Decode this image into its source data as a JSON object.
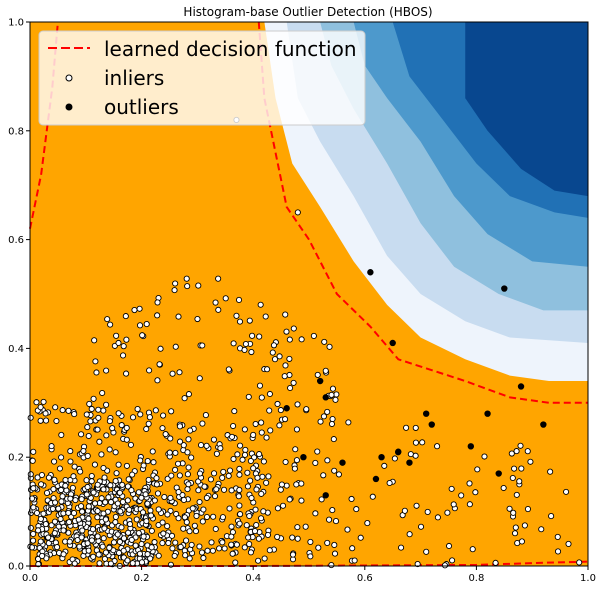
{
  "chart_data": {
    "type": "scatter",
    "title": "Histogram-base Outlier Detection (HBOS)",
    "xlabel": "",
    "ylabel": "",
    "xlim": [
      0,
      1
    ],
    "ylim": [
      0,
      1
    ],
    "x_ticks": [
      "0.0",
      "0.2",
      "0.4",
      "0.6",
      "0.8",
      "1.0"
    ],
    "y_ticks": [
      "0.0",
      "0.2",
      "0.4",
      "0.6",
      "0.8",
      "1.0"
    ],
    "legend_position": "top-left",
    "legend": [
      {
        "label": "learned decision function",
        "style": "dashed-line",
        "color": "#ff0000"
      },
      {
        "label": "inliers",
        "style": "hollow-marker",
        "color": "#ffffff"
      },
      {
        "label": "outliers",
        "style": "filled-marker",
        "color": "#000000"
      }
    ],
    "colors": {
      "inlier_region": "#ffa500",
      "decision_boundary": "#ff0000",
      "contour_levels": [
        "#eef4fc",
        "#c8dcf0",
        "#8fc0de",
        "#4d99cc",
        "#2171b5",
        "#08478f"
      ]
    },
    "decision_boundary_upper": [
      [
        0.0,
        0.62
      ],
      [
        0.02,
        0.72
      ],
      [
        0.04,
        0.88
      ],
      [
        0.05,
        1.0
      ]
    ],
    "decision_boundary_main": [
      [
        0.41,
        1.0
      ],
      [
        0.42,
        0.86
      ],
      [
        0.44,
        0.76
      ],
      [
        0.46,
        0.66
      ],
      [
        0.5,
        0.6
      ],
      [
        0.55,
        0.5
      ],
      [
        0.61,
        0.44
      ],
      [
        0.66,
        0.38
      ],
      [
        0.72,
        0.36
      ],
      [
        0.78,
        0.34
      ],
      [
        0.86,
        0.31
      ],
      [
        0.93,
        0.3
      ],
      [
        1.0,
        0.3
      ]
    ],
    "decision_boundary_bottom": [
      [
        0.0,
        0.0
      ],
      [
        0.4,
        0.0
      ],
      [
        0.8,
        0.002
      ],
      [
        0.92,
        0.006
      ],
      [
        1.0,
        0.008
      ]
    ],
    "contour_bands": [
      [
        [
          0.42,
          1.0
        ],
        [
          0.44,
          0.86
        ],
        [
          0.47,
          0.74
        ],
        [
          0.52,
          0.66
        ],
        [
          0.58,
          0.56
        ],
        [
          0.64,
          0.48
        ],
        [
          0.7,
          0.42
        ],
        [
          0.78,
          0.38
        ],
        [
          0.86,
          0.35
        ],
        [
          0.93,
          0.34
        ],
        [
          1.0,
          0.34
        ]
      ],
      [
        [
          0.46,
          1.0
        ],
        [
          0.48,
          0.86
        ],
        [
          0.52,
          0.78
        ],
        [
          0.58,
          0.68
        ],
        [
          0.64,
          0.57
        ],
        [
          0.7,
          0.5
        ],
        [
          0.78,
          0.45
        ],
        [
          0.86,
          0.42
        ],
        [
          1.0,
          0.41
        ]
      ],
      [
        [
          0.52,
          1.0
        ],
        [
          0.54,
          0.92
        ],
        [
          0.58,
          0.84
        ],
        [
          0.64,
          0.74
        ],
        [
          0.7,
          0.63
        ],
        [
          0.76,
          0.55
        ],
        [
          0.84,
          0.5
        ],
        [
          0.92,
          0.47
        ],
        [
          1.0,
          0.47
        ]
      ],
      [
        [
          0.58,
          1.0
        ],
        [
          0.6,
          0.92
        ],
        [
          0.64,
          0.86
        ],
        [
          0.7,
          0.78
        ],
        [
          0.76,
          0.68
        ],
        [
          0.82,
          0.61
        ],
        [
          0.9,
          0.56
        ],
        [
          1.0,
          0.55
        ]
      ],
      [
        [
          0.65,
          1.0
        ],
        [
          0.68,
          0.9
        ],
        [
          0.74,
          0.82
        ],
        [
          0.8,
          0.74
        ],
        [
          0.86,
          0.68
        ],
        [
          0.94,
          0.65
        ],
        [
          1.0,
          0.64
        ]
      ],
      [
        [
          0.78,
          1.0
        ],
        [
          0.78,
          0.86
        ],
        [
          0.82,
          0.8
        ],
        [
          0.88,
          0.73
        ],
        [
          0.94,
          0.69
        ],
        [
          1.0,
          0.68
        ]
      ]
    ],
    "outliers": [
      [
        0.61,
        0.54
      ],
      [
        0.85,
        0.51
      ],
      [
        0.88,
        0.33
      ],
      [
        0.92,
        0.26
      ],
      [
        0.65,
        0.41
      ],
      [
        0.52,
        0.34
      ],
      [
        0.53,
        0.31
      ],
      [
        0.82,
        0.28
      ],
      [
        0.71,
        0.28
      ],
      [
        0.72,
        0.26
      ],
      [
        0.79,
        0.22
      ],
      [
        0.66,
        0.21
      ],
      [
        0.63,
        0.2
      ],
      [
        0.56,
        0.19
      ],
      [
        0.68,
        0.19
      ],
      [
        0.62,
        0.16
      ],
      [
        0.84,
        0.17
      ],
      [
        0.53,
        0.13
      ],
      [
        0.49,
        0.2
      ],
      [
        0.46,
        0.29
      ]
    ],
    "inliers_highlight": [
      [
        0.37,
        0.82
      ],
      [
        0.48,
        0.65
      ]
    ],
    "inliers_generated": {
      "count": 1100,
      "note": "dense cloud from (0,0) to (1,0.6)"
    }
  }
}
